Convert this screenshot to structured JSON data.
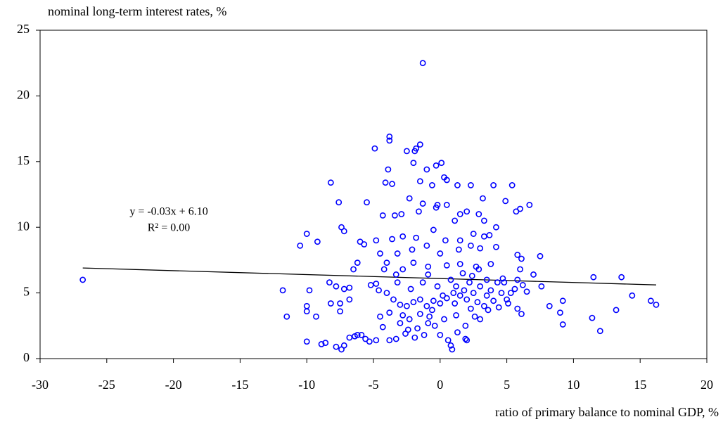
{
  "chart_data": {
    "type": "scatter",
    "ylabel": "nominal long-term interest rates, %",
    "xlabel": "ratio of primary balance to nominal GDP, %",
    "annotations": [
      "y = -0.03x + 6.10",
      "R² = 0.00"
    ],
    "color": "#0000ff",
    "xlim": [
      -30,
      20
    ],
    "xticks": [
      -30,
      -25,
      -20,
      -15,
      -10,
      -5,
      0,
      5,
      10,
      15,
      20
    ],
    "ylim": [
      0,
      25
    ],
    "yticks": [
      0,
      5,
      10,
      15,
      20,
      25
    ],
    "grid": false,
    "trendline": {
      "x": [
        -26.8,
        16.2
      ],
      "y": [
        6.9,
        5.61
      ],
      "color": "#000000"
    },
    "x": [
      -26.8,
      -1.3,
      -3.8,
      -3.8,
      -4.9,
      -1.5,
      -1.8,
      -1.9,
      -2.5,
      0.1,
      -0.3,
      -2.0,
      -3.9,
      -1.0,
      0.3,
      0.5,
      -4.1,
      -3.6,
      -1.5,
      -0.6,
      2.3,
      1.3,
      4.0,
      5.4,
      -8.2,
      3.2,
      4.9,
      6.7,
      6.0,
      5.7,
      -5.5,
      -7.6,
      -2.3,
      -1.3,
      -0.2,
      0.5,
      2.0,
      1.5,
      2.9,
      -1.6,
      -2.9,
      -4.3,
      -3.4,
      -0.3,
      1.1,
      3.3,
      -7.4,
      -7.2,
      -10.0,
      -10.5,
      -9.2,
      -6.0,
      -5.7,
      -4.8,
      -3.6,
      -2.8,
      -1.8,
      -0.5,
      0.4,
      1.5,
      2.5,
      3.3,
      4.2,
      3.7,
      -4.5,
      -3.2,
      -2.1,
      -1.0,
      0.0,
      1.4,
      2.3,
      3.0,
      4.2,
      5.8,
      6.1,
      7.5,
      -4.0,
      -2.0,
      -0.9,
      0.5,
      1.5,
      2.7,
      3.8,
      -6.2,
      -4.2,
      -2.8,
      -6.5,
      -3.3,
      6.0,
      7.0,
      5.8,
      -7.8,
      -7.2,
      -8.3,
      -9.8,
      -11.8,
      -11.5,
      -10.0,
      -10.0,
      -9.3,
      -8.2,
      -7.5,
      -7.5,
      -6.8,
      -6.8,
      -5.2,
      -4.6,
      -4.0,
      -3.5,
      -3.0,
      -2.5,
      -2.0,
      -1.5,
      -1.0,
      -0.5,
      0.0,
      0.5,
      1.0,
      1.2,
      1.5,
      1.8,
      2.0,
      2.2,
      2.5,
      2.8,
      3.0,
      3.3,
      3.5,
      3.8,
      4.0,
      4.3,
      4.6,
      5.0,
      5.3,
      5.6,
      6.2,
      6.5,
      7.6,
      8.2,
      9.0,
      9.2,
      9.2,
      11.4,
      11.5,
      12.0,
      13.2,
      13.6,
      14.4,
      15.8,
      16.2,
      6.1,
      5.8,
      4.4,
      3.6,
      2.6,
      1.9,
      1.3,
      0.8,
      0.9,
      0.6,
      0.0,
      -0.4,
      -1.2,
      -1.9,
      -2.6,
      -3.3,
      -3.8,
      -4.8,
      -5.3,
      -5.6,
      -5.9,
      -6.4,
      -6.8,
      -7.2,
      -7.4,
      -7.8,
      -8.6,
      -8.9,
      -10.0,
      -6.2,
      -4.3,
      -3.0,
      -2.3,
      -1.5,
      -0.8,
      1.9,
      2.0,
      -4.5,
      -3.8,
      -2.8,
      0.3,
      1.2,
      3.0,
      -0.2,
      0.8,
      2.4,
      3.5,
      4.8,
      -1.3,
      -2.2,
      -3.2,
      -0.9,
      1.7,
      2.9,
      -4.8,
      0.2,
      1.1,
      2.3,
      -0.6,
      -1.7,
      -2.4,
      -0.9,
      4.7,
      5.1
    ],
    "values": [
      6.0,
      22.5,
      16.9,
      16.6,
      16.0,
      16.3,
      16.0,
      15.8,
      15.8,
      14.9,
      14.7,
      14.9,
      14.4,
      14.4,
      13.8,
      13.6,
      13.4,
      13.3,
      13.5,
      13.2,
      13.2,
      13.2,
      13.2,
      13.2,
      13.4,
      12.2,
      12.0,
      11.7,
      11.4,
      11.2,
      11.9,
      11.9,
      12.2,
      11.8,
      11.7,
      11.7,
      11.2,
      11.0,
      11.0,
      11.2,
      11.0,
      10.9,
      10.9,
      11.5,
      10.5,
      10.5,
      10.0,
      9.7,
      9.5,
      8.6,
      8.9,
      8.9,
      8.7,
      9.0,
      9.1,
      9.3,
      9.2,
      9.8,
      9.0,
      9.0,
      9.5,
      9.3,
      10.0,
      9.4,
      8.0,
      8.0,
      8.3,
      8.6,
      8.0,
      8.3,
      8.6,
      8.4,
      8.5,
      7.9,
      7.6,
      7.8,
      7.3,
      7.3,
      7.0,
      7.1,
      7.2,
      7.0,
      7.2,
      7.3,
      6.8,
      6.8,
      6.8,
      6.4,
      6.8,
      6.4,
      6.0,
      5.5,
      5.3,
      5.8,
      5.2,
      5.2,
      3.2,
      4.0,
      3.6,
      3.2,
      4.2,
      4.2,
      3.6,
      4.5,
      5.4,
      5.6,
      5.2,
      5.0,
      4.5,
      4.1,
      4.0,
      4.3,
      4.5,
      4.0,
      4.4,
      4.2,
      4.6,
      5.0,
      5.5,
      4.8,
      5.2,
      4.5,
      5.8,
      5.0,
      4.3,
      5.5,
      4.0,
      4.8,
      5.2,
      4.4,
      5.8,
      5.0,
      4.5,
      5.0,
      5.3,
      5.6,
      5.1,
      5.5,
      4.0,
      3.5,
      4.4,
      2.6,
      3.1,
      6.2,
      2.1,
      3.7,
      6.2,
      4.8,
      4.4,
      4.1,
      3.4,
      3.8,
      3.9,
      3.7,
      3.2,
      2.5,
      2.0,
      1.0,
      0.7,
      1.4,
      1.8,
      2.5,
      1.8,
      1.6,
      1.9,
      1.5,
      1.4,
      1.4,
      1.3,
      1.5,
      1.8,
      1.7,
      1.6,
      1.0,
      0.7,
      0.9,
      1.2,
      1.1,
      1.3,
      1.8,
      2.4,
      2.7,
      3.0,
      3.4,
      3.2,
      1.5,
      1.4,
      3.2,
      3.5,
      3.3,
      3.0,
      3.3,
      3.0,
      5.5,
      6.0,
      6.3,
      6.0,
      5.8,
      5.8,
      5.3,
      5.8,
      6.4,
      6.5,
      6.8,
      5.7,
      4.8,
      4.2,
      3.8,
      3.7,
      2.3,
      2.2,
      2.7,
      6.1,
      4.2
    ]
  }
}
